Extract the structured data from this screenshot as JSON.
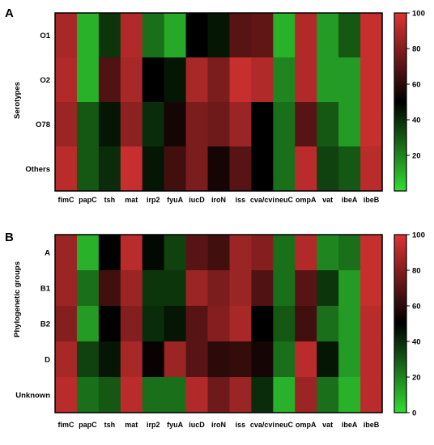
{
  "chart_data": [
    {
      "type": "heatmap",
      "panel_label": "A",
      "ylabel": "Serotypes",
      "rows": [
        "O1",
        "O2",
        "O78",
        "Others"
      ],
      "columns": [
        "fimC",
        "papC",
        "tsh",
        "mat",
        "irp2",
        "fyuA",
        "iucD",
        "iroN",
        "iss",
        "cva/cvi",
        "neuC",
        "ompA",
        "vat",
        "ibeA",
        "ibeB"
      ],
      "values": [
        [
          88,
          10,
          38,
          90,
          25,
          12,
          50,
          45,
          70,
          72,
          10,
          90,
          15,
          30,
          95
        ],
        [
          90,
          10,
          68,
          88,
          50,
          45,
          88,
          78,
          95,
          90,
          20,
          90,
          15,
          15,
          95
        ],
        [
          85,
          30,
          45,
          82,
          40,
          55,
          78,
          75,
          85,
          50,
          25,
          70,
          30,
          15,
          95
        ],
        [
          92,
          30,
          40,
          95,
          45,
          65,
          78,
          55,
          70,
          50,
          25,
          92,
          35,
          30,
          92
        ]
      ],
      "colorbar": {
        "min": 0,
        "max": 100,
        "ticks": [
          20,
          40,
          60,
          80,
          100
        ]
      },
      "colormap": {
        "low": "#33dd33",
        "mid": "#000000",
        "high": "#dd3333"
      }
    },
    {
      "type": "heatmap",
      "panel_label": "B",
      "ylabel": "Phylogenetic groups",
      "rows": [
        "A",
        "B1",
        "B2",
        "D",
        "Unknown"
      ],
      "columns": [
        "fimC",
        "papC",
        "tsh",
        "mat",
        "irp2",
        "fyuA",
        "iucD",
        "iroN",
        "iss",
        "cva/cvi",
        "neuC",
        "ompA",
        "vat",
        "ibeA",
        "ibeB"
      ],
      "values": [
        [
          85,
          10,
          50,
          92,
          48,
          35,
          70,
          65,
          85,
          80,
          25,
          90,
          20,
          25,
          95
        ],
        [
          85,
          25,
          65,
          85,
          38,
          38,
          85,
          78,
          85,
          68,
          25,
          70,
          38,
          15,
          95
        ],
        [
          80,
          15,
          50,
          80,
          40,
          45,
          70,
          80,
          88,
          50,
          30,
          65,
          25,
          15,
          92
        ],
        [
          88,
          35,
          45,
          88,
          52,
          85,
          70,
          60,
          62,
          55,
          25,
          92,
          45,
          15,
          92
        ],
        [
          92,
          25,
          30,
          92,
          25,
          25,
          90,
          75,
          85,
          40,
          10,
          85,
          25,
          10,
          92
        ]
      ],
      "colorbar": {
        "min": 0,
        "max": 100,
        "ticks": [
          0,
          20,
          40,
          60,
          80,
          100
        ]
      },
      "colormap": {
        "low": "#33dd33",
        "mid": "#000000",
        "high": "#dd3333"
      }
    }
  ]
}
